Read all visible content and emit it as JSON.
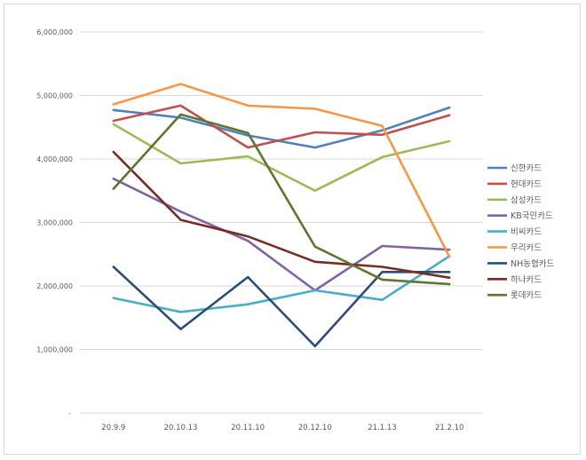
{
  "chart_data": {
    "type": "line",
    "title": "",
    "xlabel": "",
    "ylabel": "",
    "categories": [
      "20.9.9",
      "20.10.13",
      "20.11.10",
      "20.12.10",
      "21.1.13",
      "21.2.10"
    ],
    "ylim": [
      0,
      6000000
    ],
    "yticks": [
      0,
      1000000,
      2000000,
      3000000,
      4000000,
      5000000,
      6000000
    ],
    "ytick_labels": [
      "-",
      "1,000,000",
      "2,000,000",
      "3,000,000",
      "4,000,000",
      "5,000,000",
      "6,000,000"
    ],
    "grid": true,
    "legend_position": "right",
    "series": [
      {
        "name": "신한카드",
        "color": "#4F81BD",
        "values": [
          4770000,
          4650000,
          4370000,
          4180000,
          4450000,
          4810000
        ]
      },
      {
        "name": "현대카드",
        "color": "#C0504D",
        "values": [
          4600000,
          4840000,
          4180000,
          4420000,
          4380000,
          4690000
        ]
      },
      {
        "name": "삼성카드",
        "color": "#9BBB59",
        "values": [
          4550000,
          3930000,
          4040000,
          3500000,
          4030000,
          4280000
        ]
      },
      {
        "name": "KB국민카드",
        "color": "#8064A2",
        "values": [
          3690000,
          3170000,
          2710000,
          1930000,
          2630000,
          2570000
        ]
      },
      {
        "name": "비씨카드",
        "color": "#4BACC6",
        "values": [
          1810000,
          1590000,
          1710000,
          1930000,
          1780000,
          2470000
        ]
      },
      {
        "name": "우리카드",
        "color": "#F79646",
        "values": [
          4860000,
          5180000,
          4840000,
          4790000,
          4520000,
          2460000
        ]
      },
      {
        "name": "NH농협카드",
        "color": "#2C4D75",
        "values": [
          2300000,
          1320000,
          2140000,
          1050000,
          2220000,
          2220000
        ]
      },
      {
        "name": "하나카드",
        "color": "#772C2A",
        "values": [
          4110000,
          3040000,
          2780000,
          2380000,
          2300000,
          2130000
        ]
      },
      {
        "name": "롯데카드",
        "color": "#5F7530",
        "values": [
          3530000,
          4700000,
          4410000,
          2620000,
          2100000,
          2030000
        ]
      }
    ]
  }
}
